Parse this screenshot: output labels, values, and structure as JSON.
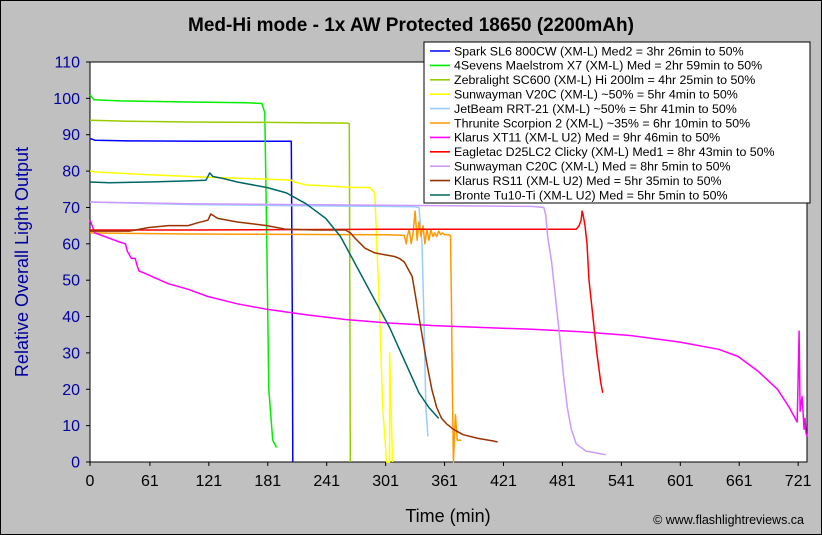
{
  "chart_data": {
    "type": "line",
    "title": "Med-Hi mode - 1x AW Protected 18650 (2200mAh)",
    "xlabel": "Time (min)",
    "ylabel": "Relative Overall Light Output",
    "xlim": [
      0,
      730
    ],
    "ylim": [
      0,
      110
    ],
    "x_ticks": [
      0,
      61,
      121,
      181,
      241,
      301,
      361,
      421,
      481,
      541,
      601,
      661,
      721
    ],
    "y_ticks": [
      0,
      10,
      20,
      30,
      40,
      50,
      60,
      70,
      80,
      90,
      100,
      110
    ],
    "grid": false,
    "legend_position": "top-right",
    "copyright": "© www.flashlightreviews.ca",
    "series": [
      {
        "name": "Spark SL6 800CW (XM-L) Med2 = 3hr 26min to 50%",
        "color": "#0000ff",
        "points": [
          [
            0,
            89
          ],
          [
            5,
            88.5
          ],
          [
            40,
            88.3
          ],
          [
            120,
            88.2
          ],
          [
            200,
            88.2
          ],
          [
            205,
            88.2
          ],
          [
            206,
            40
          ],
          [
            206.5,
            0
          ]
        ]
      },
      {
        "name": "4Sevens Maelstrom X7 (XM-L) Med = 2hr 59min to 50%",
        "color": "#00ee00",
        "points": [
          [
            0,
            101
          ],
          [
            4,
            99.6
          ],
          [
            30,
            99.3
          ],
          [
            100,
            99
          ],
          [
            160,
            98.8
          ],
          [
            175,
            98.6
          ],
          [
            178,
            96
          ],
          [
            180,
            60
          ],
          [
            182,
            20
          ],
          [
            186,
            6
          ],
          [
            190,
            4
          ]
        ]
      },
      {
        "name": "Zebralight SC600 (XM-L) Hi 200lm = 4hr 25min to 50%",
        "color": "#99cc00",
        "points": [
          [
            0,
            94
          ],
          [
            40,
            93.7
          ],
          [
            100,
            93.5
          ],
          [
            180,
            93.4
          ],
          [
            262,
            93.2
          ],
          [
            264,
            93
          ],
          [
            264.5,
            50
          ],
          [
            265,
            0
          ]
        ]
      },
      {
        "name": "Sunwayman V20C (XM-L) ~50% = 5hr 4min to 50%",
        "color": "#ffff00",
        "points": [
          [
            0,
            80
          ],
          [
            10,
            79.7
          ],
          [
            60,
            79
          ],
          [
            120,
            78.3
          ],
          [
            180,
            77.8
          ],
          [
            205,
            77.5
          ],
          [
            208,
            77
          ],
          [
            220,
            76.2
          ],
          [
            270,
            75.5
          ],
          [
            285,
            75.5
          ],
          [
            290,
            74
          ],
          [
            292,
            60
          ],
          [
            295,
            40
          ],
          [
            298,
            15
          ],
          [
            302,
            0
          ],
          [
            305,
            0
          ],
          [
            305,
            30
          ],
          [
            306,
            20
          ],
          [
            308,
            0
          ]
        ]
      },
      {
        "name": "JetBeam RRT-21 (XM-L) ~50% = 5hr 41min to 50%",
        "color": "#99ccff",
        "points": [
          [
            0,
            71.5
          ],
          [
            100,
            70.8
          ],
          [
            200,
            70.5
          ],
          [
            300,
            70.3
          ],
          [
            330,
            70.2
          ],
          [
            335,
            70
          ],
          [
            338,
            60
          ],
          [
            340,
            40
          ],
          [
            342,
            15
          ],
          [
            344,
            7
          ]
        ]
      },
      {
        "name": "Thrunite Scorpion 2 (XM-L) ~35% = 6hr 10min to 50%",
        "color": "#ff9900",
        "points": [
          [
            0,
            63
          ],
          [
            100,
            62.7
          ],
          [
            200,
            62.6
          ],
          [
            300,
            62.5
          ],
          [
            315,
            62.4
          ],
          [
            320,
            62.3
          ],
          [
            322,
            60
          ],
          [
            323,
            62
          ],
          [
            325,
            64
          ],
          [
            327,
            60
          ],
          [
            329,
            63
          ],
          [
            331,
            69
          ],
          [
            333,
            61
          ],
          [
            335,
            66
          ],
          [
            337,
            62
          ],
          [
            339,
            65
          ],
          [
            341,
            60
          ],
          [
            343,
            64
          ],
          [
            345,
            61
          ],
          [
            347,
            64
          ],
          [
            349,
            62
          ],
          [
            351,
            63
          ],
          [
            353,
            62
          ],
          [
            355,
            63.5
          ],
          [
            357,
            62.5
          ],
          [
            359,
            63
          ],
          [
            361,
            62.5
          ],
          [
            363,
            62.5
          ],
          [
            365,
            62.5
          ],
          [
            367,
            62.2
          ],
          [
            368,
            45
          ],
          [
            369,
            20
          ],
          [
            370,
            0
          ],
          [
            372,
            13
          ],
          [
            374,
            6
          ],
          [
            378,
            6
          ]
        ]
      },
      {
        "name": "Klarus XT11 (XM-L U2) Med = 9hr 46min to 50%",
        "color": "#ff00ff",
        "points": [
          [
            0,
            66.5
          ],
          [
            5,
            63
          ],
          [
            15,
            62
          ],
          [
            30,
            60.5
          ],
          [
            36,
            60
          ],
          [
            38,
            58
          ],
          [
            42,
            56
          ],
          [
            46,
            56
          ],
          [
            48,
            54
          ],
          [
            50,
            52.5
          ],
          [
            55,
            52
          ],
          [
            65,
            50.8
          ],
          [
            80,
            49
          ],
          [
            100,
            47.5
          ],
          [
            120,
            45.5
          ],
          [
            150,
            43.5
          ],
          [
            180,
            42
          ],
          [
            220,
            40.5
          ],
          [
            260,
            39.2
          ],
          [
            300,
            38.3
          ],
          [
            350,
            37.5
          ],
          [
            400,
            37
          ],
          [
            450,
            36.5
          ],
          [
            500,
            35.8
          ],
          [
            550,
            34.8
          ],
          [
            600,
            33
          ],
          [
            640,
            31
          ],
          [
            660,
            29
          ],
          [
            680,
            25
          ],
          [
            700,
            20
          ],
          [
            712,
            15
          ],
          [
            718,
            12
          ],
          [
            720,
            11
          ],
          [
            722,
            36
          ],
          [
            723,
            14
          ],
          [
            725,
            18
          ],
          [
            727,
            9
          ],
          [
            728,
            12
          ],
          [
            729,
            8
          ],
          [
            730,
            7
          ]
        ]
      },
      {
        "name": "Eagletac D25LC2 Clicky (XM-L) Med1 = 8hr 43min to 50%",
        "color": "#ff0000",
        "points": [
          [
            0,
            63.8
          ],
          [
            100,
            63.8
          ],
          [
            200,
            63.9
          ],
          [
            300,
            64
          ],
          [
            400,
            64
          ],
          [
            470,
            64
          ],
          [
            495,
            64
          ],
          [
            498,
            65
          ],
          [
            500,
            66.5
          ],
          [
            501,
            69
          ],
          [
            502,
            68
          ],
          [
            504,
            65
          ],
          [
            506,
            60
          ],
          [
            508,
            50
          ],
          [
            512,
            40
          ],
          [
            516,
            30
          ],
          [
            520,
            22
          ],
          [
            522,
            19
          ]
        ]
      },
      {
        "name": "Sunwayman C20C (XM-L) Med = 8hr 5min to 50%",
        "color": "#cc99ff",
        "points": [
          [
            0,
            71.5
          ],
          [
            100,
            71
          ],
          [
            200,
            70.8
          ],
          [
            300,
            70.6
          ],
          [
            400,
            70.4
          ],
          [
            450,
            70.3
          ],
          [
            462,
            70
          ],
          [
            464,
            68
          ],
          [
            466,
            62
          ],
          [
            470,
            55
          ],
          [
            474,
            45
          ],
          [
            478,
            35
          ],
          [
            482,
            24
          ],
          [
            486,
            15
          ],
          [
            490,
            9
          ],
          [
            495,
            5
          ],
          [
            505,
            3
          ],
          [
            515,
            2.5
          ],
          [
            525,
            2
          ]
        ]
      },
      {
        "name": "Klarus RS11 (XM-L U2) Med = 5hr 35min to 50%",
        "color": "#993300",
        "points": [
          [
            0,
            63.5
          ],
          [
            20,
            63.5
          ],
          [
            40,
            63.5
          ],
          [
            60,
            64.5
          ],
          [
            80,
            65
          ],
          [
            100,
            65
          ],
          [
            110,
            65.8
          ],
          [
            120,
            66.5
          ],
          [
            123,
            68.2
          ],
          [
            130,
            67
          ],
          [
            150,
            66
          ],
          [
            180,
            65
          ],
          [
            200,
            64
          ],
          [
            230,
            63.8
          ],
          [
            250,
            63.8
          ],
          [
            260,
            63.8
          ],
          [
            265,
            63
          ],
          [
            270,
            61.5
          ],
          [
            280,
            58.8
          ],
          [
            290,
            57.5
          ],
          [
            300,
            57
          ],
          [
            310,
            56.5
          ],
          [
            315,
            56
          ],
          [
            320,
            55
          ],
          [
            328,
            51
          ],
          [
            333,
            43
          ],
          [
            338,
            35
          ],
          [
            343,
            27
          ],
          [
            348,
            20
          ],
          [
            353,
            15
          ],
          [
            358,
            12
          ],
          [
            363,
            10.5
          ],
          [
            370,
            9
          ],
          [
            380,
            7.5
          ],
          [
            395,
            6.5
          ],
          [
            410,
            5.8
          ],
          [
            415,
            5.5
          ]
        ]
      },
      {
        "name": "Bronte Tu10-Ti (XM-L U2) Med = 5hr 5min to 50%",
        "color": "#006666",
        "points": [
          [
            0,
            77
          ],
          [
            20,
            76.8
          ],
          [
            60,
            77
          ],
          [
            100,
            77.3
          ],
          [
            118,
            77.5
          ],
          [
            120,
            78.5
          ],
          [
            122,
            79.5
          ],
          [
            125,
            78.5
          ],
          [
            135,
            78
          ],
          [
            150,
            77
          ],
          [
            180,
            75.5
          ],
          [
            200,
            74
          ],
          [
            220,
            71
          ],
          [
            240,
            67
          ],
          [
            255,
            62
          ],
          [
            265,
            57
          ],
          [
            275,
            52
          ],
          [
            285,
            47
          ],
          [
            295,
            42
          ],
          [
            305,
            37
          ],
          [
            315,
            31
          ],
          [
            325,
            25
          ],
          [
            335,
            19
          ],
          [
            345,
            15
          ],
          [
            355,
            12
          ]
        ]
      }
    ]
  }
}
